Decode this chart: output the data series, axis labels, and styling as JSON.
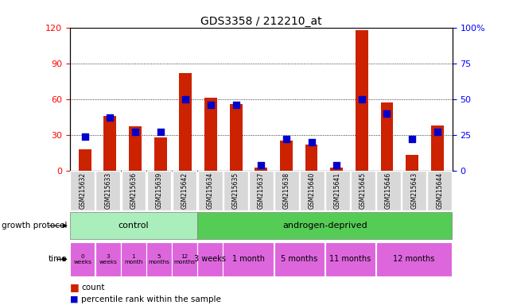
{
  "title": "GDS3358 / 212210_at",
  "samples": [
    "GSM215632",
    "GSM215633",
    "GSM215636",
    "GSM215639",
    "GSM215642",
    "GSM215634",
    "GSM215635",
    "GSM215637",
    "GSM215638",
    "GSM215640",
    "GSM215641",
    "GSM215645",
    "GSM215646",
    "GSM215643",
    "GSM215644"
  ],
  "count_values": [
    18,
    46,
    37,
    28,
    82,
    61,
    56,
    3,
    25,
    22,
    3,
    118,
    57,
    13,
    38
  ],
  "percentile_values": [
    24,
    37,
    27,
    27,
    50,
    46,
    46,
    4,
    22,
    20,
    4,
    50,
    40,
    22,
    27
  ],
  "ylim_left": [
    0,
    120
  ],
  "ylim_right": [
    0,
    100
  ],
  "yticks_left": [
    0,
    30,
    60,
    90,
    120
  ],
  "yticks_right": [
    0,
    25,
    50,
    75,
    100
  ],
  "bar_color_red": "#cc2200",
  "bar_color_blue": "#0000cc",
  "grid_color": "black",
  "control_color": "#aaeebb",
  "androgen_color": "#55cc55",
  "time_color": "#dd66dd",
  "col_bg_color": "#d8d8d8",
  "plot_bg_color": "#ffffff",
  "control_times": [
    "0\nweeks",
    "3\nweeks",
    "1\nmonth",
    "5\nmonths",
    "12\nmonths"
  ],
  "androgen_times": [
    "3 weeks",
    "1 month",
    "5 months",
    "11 months",
    "12 months"
  ],
  "androgen_time_groups": [
    [
      5
    ],
    [
      6,
      7
    ],
    [
      8,
      9
    ],
    [
      10,
      11
    ],
    [
      12,
      13,
      14
    ]
  ]
}
